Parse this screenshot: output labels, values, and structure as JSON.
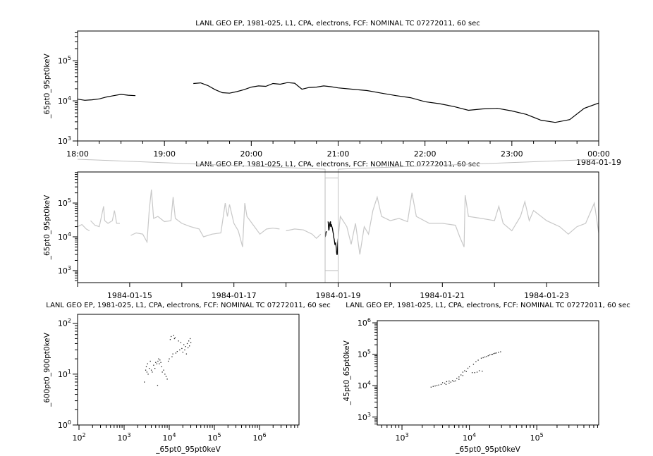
{
  "colors": {
    "primary_series": "#000000",
    "context_series": "#c8c8c8",
    "zoom_box": "#c0c0c0"
  },
  "chart_data": [
    {
      "id": "top",
      "type": "line",
      "title": "LANL GEO EP, 1981-025, L1, CPA, electrons, FCF: NOMINAL TC 07272011, 60 sec",
      "ylabel": "_65pt0_95pt0keV",
      "xlabel": "",
      "x_axis": "time",
      "xlim": [
        "1984-01-18T18:00",
        "1984-01-19T00:00"
      ],
      "x_ticks": [
        "18:00",
        "19:00",
        "20:00",
        "21:00",
        "22:00",
        "23:00",
        "00:00"
      ],
      "x_tick_date_label": "1984-01-19",
      "ylog": true,
      "ylim": [
        1000,
        550000
      ],
      "y_ticks": [
        {
          "base": "10",
          "exp": "3"
        },
        {
          "base": "10",
          "exp": "4"
        },
        {
          "base": "10",
          "exp": "5"
        }
      ],
      "color": "#000000",
      "series": [
        [
          "1984-01-18T18:00",
          11000
        ],
        [
          "1984-01-18T18:05",
          10300
        ],
        [
          "1984-01-18T18:10",
          10600
        ],
        [
          "1984-01-18T18:15",
          11200
        ],
        [
          "1984-01-18T18:20",
          12500
        ],
        [
          "1984-01-18T18:25",
          13500
        ],
        [
          "1984-01-18T18:30",
          14500
        ],
        [
          "1984-01-18T18:35",
          13800
        ],
        [
          "1984-01-18T18:40",
          13500
        ],
        [
          "1984-01-18T18:41",
          null
        ],
        [
          "1984-01-18T19:20",
          27000
        ],
        [
          "1984-01-18T19:25",
          28000
        ],
        [
          "1984-01-18T19:30",
          24000
        ],
        [
          "1984-01-18T19:35",
          19000
        ],
        [
          "1984-01-18T19:40",
          16000
        ],
        [
          "1984-01-18T19:45",
          15500
        ],
        [
          "1984-01-18T19:50",
          17000
        ],
        [
          "1984-01-18T19:55",
          19000
        ],
        [
          "1984-01-18T20:00",
          22000
        ],
        [
          "1984-01-18T20:05",
          23500
        ],
        [
          "1984-01-18T20:10",
          23000
        ],
        [
          "1984-01-18T20:15",
          27000
        ],
        [
          "1984-01-18T20:20",
          26000
        ],
        [
          "1984-01-18T20:25",
          28500
        ],
        [
          "1984-01-18T20:30",
          27500
        ],
        [
          "1984-01-18T20:35",
          19500
        ],
        [
          "1984-01-18T20:40",
          21500
        ],
        [
          "1984-01-18T20:45",
          22000
        ],
        [
          "1984-01-18T20:50",
          23500
        ],
        [
          "1984-01-18T20:55",
          22500
        ],
        [
          "1984-01-18T21:00",
          21000
        ],
        [
          "1984-01-18T21:10",
          19500
        ],
        [
          "1984-01-18T21:20",
          18000
        ],
        [
          "1984-01-18T21:30",
          15500
        ],
        [
          "1984-01-18T21:40",
          13500
        ],
        [
          "1984-01-18T21:50",
          12000
        ],
        [
          "1984-01-18T22:00",
          9500
        ],
        [
          "1984-01-18T22:10",
          8500
        ],
        [
          "1984-01-18T22:20",
          7200
        ],
        [
          "1984-01-18T22:30",
          5800
        ],
        [
          "1984-01-18T22:40",
          6300
        ],
        [
          "1984-01-18T22:50",
          6500
        ],
        [
          "1984-01-18T23:00",
          5600
        ],
        [
          "1984-01-18T23:10",
          4600
        ],
        [
          "1984-01-18T23:20",
          3300
        ],
        [
          "1984-01-18T23:30",
          2900
        ],
        [
          "1984-01-18T23:40",
          3400
        ],
        [
          "1984-01-18T23:50",
          6500
        ],
        [
          "1984-01-19T00:00",
          8800
        ]
      ]
    },
    {
      "id": "context",
      "type": "line",
      "title": "LANL GEO EP, 1981-025, L1, CPA, electrons, FCF: NOMINAL TC 07272011, 60 sec",
      "ylabel": "_65pt0_95pt0keV",
      "xlabel": "",
      "x_axis": "time",
      "xlim": [
        "1984-01-14T00:00",
        "1984-01-24T00:00"
      ],
      "x_ticks": [
        "1984-01-15",
        "1984-01-17",
        "1984-01-19",
        "1984-01-21",
        "1984-01-23"
      ],
      "ylog": true,
      "ylim": [
        440,
        830000
      ],
      "y_ticks": [
        {
          "base": "10",
          "exp": "3"
        },
        {
          "base": "10",
          "exp": "4"
        },
        {
          "base": "10",
          "exp": "5"
        }
      ],
      "zoom_range": [
        "1984-01-18T18:00",
        "1984-01-19T00:00"
      ],
      "color": "#c8c8c8",
      "series": [
        [
          "1984-01-14T00:00",
          20000
        ],
        [
          "1984-01-14T02:00",
          23000
        ],
        [
          "1984-01-14T04:00",
          17000
        ],
        [
          "1984-01-14T05:30",
          15000
        ],
        [
          "1984-01-14T05:45",
          null
        ],
        [
          "1984-01-14T06:00",
          30000
        ],
        [
          "1984-01-14T08:00",
          22000
        ],
        [
          "1984-01-14T10:00",
          20000
        ],
        [
          "1984-01-14T12:00",
          80000
        ],
        [
          "1984-01-14T12:30",
          30000
        ],
        [
          "1984-01-14T14:00",
          25000
        ],
        [
          "1984-01-14T16:00",
          30000
        ],
        [
          "1984-01-14T17:00",
          60000
        ],
        [
          "1984-01-14T18:00",
          25000
        ],
        [
          "1984-01-14T19:30",
          25000
        ],
        [
          "1984-01-14T20:00",
          null
        ],
        [
          "1984-01-15T00:30",
          11000
        ],
        [
          "1984-01-15T03:00",
          13000
        ],
        [
          "1984-01-15T06:00",
          12000
        ],
        [
          "1984-01-15T08:00",
          7000
        ],
        [
          "1984-01-15T09:00",
          60000
        ],
        [
          "1984-01-15T10:00",
          250000
        ],
        [
          "1984-01-15T11:00",
          35000
        ],
        [
          "1984-01-15T13:00",
          40000
        ],
        [
          "1984-01-15T16:00",
          28000
        ],
        [
          "1984-01-15T19:00",
          30000
        ],
        [
          "1984-01-15T20:00",
          150000
        ],
        [
          "1984-01-15T21:00",
          35000
        ],
        [
          "1984-01-16T00:00",
          25000
        ],
        [
          "1984-01-16T04:00",
          20000
        ],
        [
          "1984-01-16T08:00",
          17000
        ],
        [
          "1984-01-16T10:00",
          10000
        ],
        [
          "1984-01-16T14:00",
          12000
        ],
        [
          "1984-01-16T18:00",
          13000
        ],
        [
          "1984-01-16T20:00",
          100000
        ],
        [
          "1984-01-16T21:00",
          40000
        ],
        [
          "1984-01-16T22:00",
          90000
        ],
        [
          "1984-01-17T00:00",
          25000
        ],
        [
          "1984-01-17T02:00",
          15000
        ],
        [
          "1984-01-17T04:00",
          5000
        ],
        [
          "1984-01-17T05:00",
          100000
        ],
        [
          "1984-01-17T06:00",
          40000
        ],
        [
          "1984-01-17T09:00",
          22000
        ],
        [
          "1984-01-17T12:00",
          12000
        ],
        [
          "1984-01-17T15:00",
          17000
        ],
        [
          "1984-01-17T18:00",
          18000
        ],
        [
          "1984-01-17T21:00",
          17000
        ],
        [
          "1984-01-17T21:30",
          null
        ],
        [
          "1984-01-18T00:00",
          15000
        ],
        [
          "1984-01-18T04:00",
          17000
        ],
        [
          "1984-01-18T08:00",
          16000
        ],
        [
          "1984-01-18T12:00",
          12000
        ],
        [
          "1984-01-18T14:00",
          9000
        ],
        [
          "1984-01-18T16:00",
          12000
        ],
        [
          "1984-01-18T16:30",
          null
        ],
        [
          "1984-01-19T00:00",
          9000
        ],
        [
          "1984-01-19T01:00",
          40000
        ],
        [
          "1984-01-19T04:00",
          20000
        ],
        [
          "1984-01-19T06:00",
          6000
        ],
        [
          "1984-01-19T08:00",
          25000
        ],
        [
          "1984-01-19T10:00",
          3000
        ],
        [
          "1984-01-19T12:00",
          20000
        ],
        [
          "1984-01-19T14:00",
          12000
        ],
        [
          "1984-01-19T16:00",
          60000
        ],
        [
          "1984-01-19T18:00",
          150000
        ],
        [
          "1984-01-19T20:00",
          40000
        ],
        [
          "1984-01-20T00:00",
          30000
        ],
        [
          "1984-01-20T04:00",
          35000
        ],
        [
          "1984-01-20T08:00",
          28000
        ],
        [
          "1984-01-20T10:00",
          200000
        ],
        [
          "1984-01-20T12:00",
          40000
        ],
        [
          "1984-01-20T18:00",
          25000
        ],
        [
          "1984-01-21T00:00",
          25000
        ],
        [
          "1984-01-21T06:00",
          22000
        ],
        [
          "1984-01-21T08:00",
          10000
        ],
        [
          "1984-01-21T10:00",
          5000
        ],
        [
          "1984-01-21T10:30",
          170000
        ],
        [
          "1984-01-21T12:00",
          40000
        ],
        [
          "1984-01-21T18:00",
          35000
        ],
        [
          "1984-01-22T00:00",
          30000
        ],
        [
          "1984-01-22T02:00",
          80000
        ],
        [
          "1984-01-22T04:00",
          25000
        ],
        [
          "1984-01-22T08:00",
          15000
        ],
        [
          "1984-01-22T12:00",
          40000
        ],
        [
          "1984-01-22T14:00",
          110000
        ],
        [
          "1984-01-22T16:00",
          30000
        ],
        [
          "1984-01-22T18:00",
          60000
        ],
        [
          "1984-01-23T00:00",
          30000
        ],
        [
          "1984-01-23T06:00",
          20000
        ],
        [
          "1984-01-23T10:00",
          12000
        ],
        [
          "1984-01-23T14:00",
          20000
        ],
        [
          "1984-01-23T18:00",
          25000
        ],
        [
          "1984-01-23T22:00",
          100000
        ],
        [
          "1984-01-24T00:00",
          13000
        ]
      ]
    },
    {
      "id": "scatter-left",
      "type": "scatter",
      "title": "LANL GEO EP, 1981-025, L1, CPA, electrons, FCF: NOMINAL TC 07272011, 60 sec",
      "xlabel": "_65pt0_95pt0keV",
      "ylabel": "_600pt0_900pt0keV",
      "xlog": true,
      "ylog": true,
      "xlim": [
        93,
        7500000
      ],
      "ylim": [
        1,
        150
      ],
      "x_ticks": [
        {
          "base": "10",
          "exp": "2"
        },
        {
          "base": "10",
          "exp": "3"
        },
        {
          "base": "10",
          "exp": "4"
        },
        {
          "base": "10",
          "exp": "5"
        },
        {
          "base": "10",
          "exp": "6"
        }
      ],
      "y_ticks": [
        {
          "base": "10",
          "exp": "0"
        },
        {
          "base": "10",
          "exp": "1"
        },
        {
          "base": "10",
          "exp": "2"
        }
      ],
      "points": [
        [
          2800,
          7
        ],
        [
          3000,
          12
        ],
        [
          3100,
          14
        ],
        [
          3200,
          11
        ],
        [
          3300,
          16
        ],
        [
          3400,
          10
        ],
        [
          3600,
          13
        ],
        [
          3800,
          18
        ],
        [
          4000,
          12
        ],
        [
          4200,
          11
        ],
        [
          4500,
          15
        ],
        [
          4800,
          13
        ],
        [
          5000,
          17
        ],
        [
          5300,
          16
        ],
        [
          5500,
          6
        ],
        [
          5600,
          18
        ],
        [
          5800,
          20
        ],
        [
          6000,
          16
        ],
        [
          6200,
          19
        ],
        [
          6500,
          17
        ],
        [
          6800,
          14
        ],
        [
          7000,
          11
        ],
        [
          7500,
          12
        ],
        [
          8000,
          10
        ],
        [
          8500,
          9
        ],
        [
          9000,
          8
        ],
        [
          9500,
          18
        ],
        [
          10000,
          20
        ],
        [
          10500,
          48
        ],
        [
          11000,
          55
        ],
        [
          11500,
          22
        ],
        [
          12000,
          25
        ],
        [
          12500,
          58
        ],
        [
          13000,
          50
        ],
        [
          13500,
          52
        ],
        [
          14000,
          26
        ],
        [
          15000,
          28
        ],
        [
          16000,
          45
        ],
        [
          17000,
          30
        ],
        [
          18000,
          42
        ],
        [
          19000,
          32
        ],
        [
          20000,
          27
        ],
        [
          21000,
          38
        ],
        [
          22000,
          30
        ],
        [
          23000,
          35
        ],
        [
          24000,
          25
        ],
        [
          25000,
          40
        ],
        [
          26000,
          33
        ],
        [
          27000,
          45
        ],
        [
          28000,
          36
        ],
        [
          29000,
          50
        ],
        [
          30000,
          42
        ]
      ]
    },
    {
      "id": "scatter-right",
      "type": "scatter",
      "title": "LANL GEO EP, 1981-025, L1, CPA, electrons, FCF: NOMINAL TC 07272011, 60 sec",
      "xlabel": "_65pt0_95pt0keV",
      "ylabel": "_45pt0_65pt0keV",
      "xlog": true,
      "ylog": true,
      "xlim": [
        430,
        830000
      ],
      "ylim": [
        560,
        1170000
      ],
      "x_ticks": [
        {
          "base": "10",
          "exp": "3"
        },
        {
          "base": "10",
          "exp": "4"
        },
        {
          "base": "10",
          "exp": "5"
        }
      ],
      "y_ticks": [
        {
          "base": "10",
          "exp": "3"
        },
        {
          "base": "10",
          "exp": "4"
        },
        {
          "base": "10",
          "exp": "5"
        },
        {
          "base": "10",
          "exp": "6"
        }
      ],
      "points": [
        [
          2700,
          9000
        ],
        [
          2900,
          9500
        ],
        [
          3100,
          9800
        ],
        [
          3300,
          10200
        ],
        [
          3500,
          10500
        ],
        [
          3800,
          11000
        ],
        [
          4000,
          12500
        ],
        [
          4300,
          12000
        ],
        [
          4600,
          13500
        ],
        [
          5000,
          14000
        ],
        [
          5300,
          13000
        ],
        [
          5600,
          14500
        ],
        [
          5900,
          13800
        ],
        [
          6200,
          14200
        ],
        [
          6500,
          17000
        ],
        [
          7000,
          19000
        ],
        [
          7500,
          22000
        ],
        [
          8000,
          27000
        ],
        [
          8500,
          30000
        ],
        [
          9000,
          28000
        ],
        [
          9500,
          36000
        ],
        [
          10000,
          40000
        ],
        [
          11000,
          26000
        ],
        [
          11500,
          48000
        ],
        [
          12000,
          26000
        ],
        [
          12500,
          58000
        ],
        [
          13000,
          27000
        ],
        [
          13500,
          65000
        ],
        [
          14000,
          30000
        ],
        [
          15000,
          75000
        ],
        [
          15500,
          29000
        ],
        [
          16000,
          78000
        ],
        [
          17000,
          82000
        ],
        [
          18000,
          85000
        ],
        [
          19000,
          90000
        ],
        [
          20000,
          95000
        ],
        [
          21000,
          98000
        ],
        [
          22000,
          100000
        ],
        [
          23000,
          105000
        ],
        [
          24000,
          108000
        ],
        [
          25000,
          110000
        ],
        [
          27000,
          115000
        ],
        [
          29000,
          120000
        ],
        [
          4500,
          11000
        ],
        [
          5000,
          12000
        ],
        [
          7000,
          16000
        ],
        [
          8000,
          21000
        ]
      ]
    }
  ]
}
